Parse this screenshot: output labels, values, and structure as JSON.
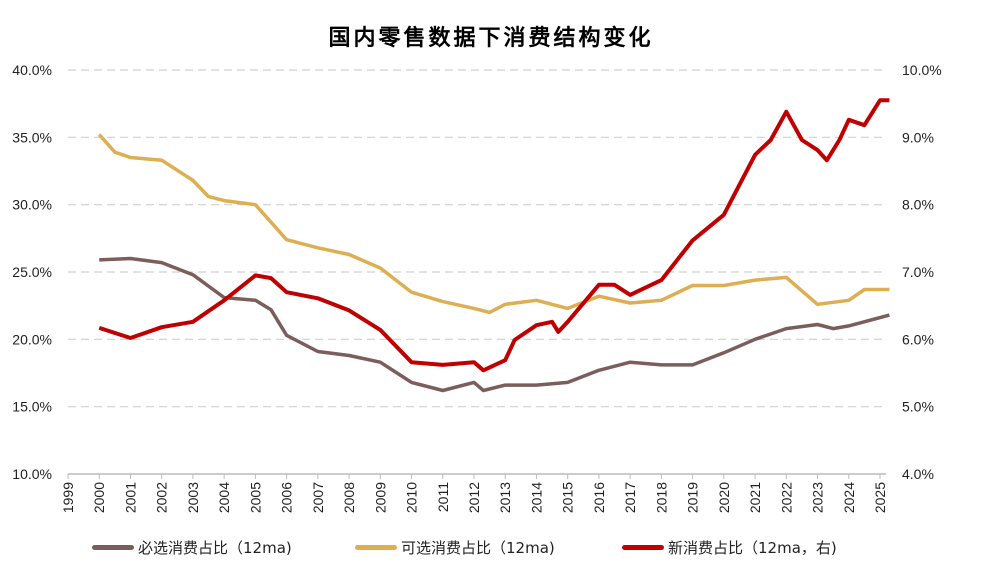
{
  "chart_data": {
    "type": "line",
    "title": "国内零售数据下消费结构变化",
    "left_axis": {
      "ylim": [
        10,
        40
      ],
      "ticks": [
        "10.0%",
        "15.0%",
        "20.0%",
        "25.0%",
        "30.0%",
        "35.0%",
        "40.0%"
      ]
    },
    "right_axis": {
      "ylim": [
        4,
        10
      ],
      "ticks": [
        "4.0%",
        "5.0%",
        "6.0%",
        "7.0%",
        "8.0%",
        "9.0%",
        "10.0%"
      ]
    },
    "x_ticks": [
      "1999",
      "2000",
      "2001",
      "2002",
      "2003",
      "2004",
      "2005",
      "2006",
      "2007",
      "2008",
      "2009",
      "2010",
      "2011",
      "2012",
      "2013",
      "2014",
      "2015",
      "2016",
      "2017",
      "2018",
      "2019",
      "2020",
      "2021",
      "2022",
      "2023",
      "2024",
      "2025"
    ],
    "xlim": [
      1999,
      2025.3
    ],
    "grid": "horizontal dashed",
    "legend_position": "bottom",
    "series": [
      {
        "name": "必选消费占比（12ma)",
        "axis": "left",
        "color": "#7B5E5B",
        "x": [
          2000,
          2001,
          2002,
          2003,
          2004,
          2005,
          2005.5,
          2006,
          2007,
          2008,
          2009,
          2010,
          2011,
          2012,
          2012.3,
          2013,
          2014,
          2015,
          2016,
          2017,
          2018,
          2019,
          2020,
          2021,
          2022,
          2023,
          2023.5,
          2024,
          2025.3
        ],
        "y": [
          25.9,
          26.0,
          25.7,
          24.8,
          23.1,
          22.9,
          22.2,
          20.3,
          19.1,
          18.8,
          18.3,
          16.8,
          16.2,
          16.8,
          16.2,
          16.6,
          16.6,
          16.8,
          17.7,
          18.3,
          18.1,
          18.1,
          19.0,
          20.0,
          20.8,
          21.1,
          20.8,
          21.0,
          21.8
        ]
      },
      {
        "name": "可选消费占比（12ma)",
        "axis": "left",
        "color": "#DDAE52",
        "x": [
          2000,
          2000.5,
          2001,
          2002,
          2003,
          2003.5,
          2004,
          2005,
          2006,
          2007,
          2008,
          2009,
          2010,
          2011,
          2012,
          2012.5,
          2013,
          2014,
          2015,
          2016,
          2017,
          2018,
          2019,
          2020,
          2021,
          2022,
          2023,
          2024,
          2024.5,
          2025.3
        ],
        "y": [
          35.2,
          33.9,
          33.5,
          33.3,
          31.8,
          30.6,
          30.3,
          30.0,
          27.4,
          26.8,
          26.3,
          25.3,
          23.5,
          22.8,
          22.3,
          22.0,
          22.6,
          22.9,
          22.3,
          23.2,
          22.7,
          22.9,
          24.0,
          24.0,
          24.4,
          24.6,
          22.6,
          22.9,
          23.7,
          23.7
        ]
      },
      {
        "name": "新消费占比（12ma，右)",
        "axis": "right",
        "color": "#C00000",
        "x": [
          2000,
          2001,
          2002,
          2003,
          2004,
          2005,
          2005.5,
          2006,
          2007,
          2008,
          2009,
          2010,
          2011,
          2012,
          2012.3,
          2013,
          2013.3,
          2014,
          2014.5,
          2014.7,
          2015,
          2016,
          2016.5,
          2017,
          2018,
          2019,
          2020,
          2021,
          2021.5,
          2022,
          2022.5,
          2023,
          2023.3,
          2023.7,
          2024,
          2024.5,
          2025,
          2025.3
        ],
        "y": [
          6.17,
          6.02,
          6.18,
          6.26,
          6.58,
          6.95,
          6.91,
          6.7,
          6.61,
          6.43,
          6.14,
          5.66,
          5.62,
          5.66,
          5.54,
          5.69,
          5.99,
          6.21,
          6.26,
          6.11,
          6.26,
          6.81,
          6.81,
          6.66,
          6.88,
          7.47,
          7.85,
          8.74,
          8.96,
          9.38,
          8.96,
          8.81,
          8.66,
          8.96,
          9.26,
          9.18,
          9.55,
          9.55
        ]
      }
    ]
  }
}
